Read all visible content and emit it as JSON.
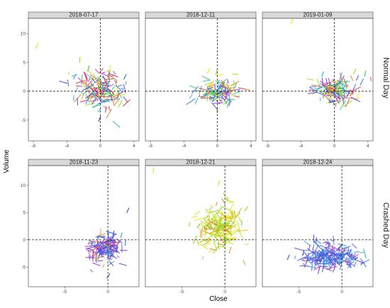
{
  "figure": {
    "xlabel": "Close",
    "ylabel": "Volume",
    "row_labels": [
      "Normal Day",
      "Crashed Day"
    ]
  },
  "chart_data": [
    {
      "type": "scatter",
      "title": "2018-07-17",
      "row": "Normal Day",
      "xlim": [
        -8.6,
        4.6
      ],
      "ylim": [
        -8.6,
        12.6
      ],
      "xticks": [
        -8,
        -4,
        0,
        4
      ],
      "yticks": [
        -5,
        0,
        5,
        10
      ],
      "reference_lines": {
        "x": 0,
        "y": 0
      },
      "cloud": {
        "center": [
          0,
          0
        ],
        "x_spread": 1.4,
        "y_spread": 1.6,
        "n": 180
      },
      "outliers": [
        [
          -7.7,
          7.5
        ],
        [
          -2.5,
          5.0
        ],
        [
          -1.5,
          3.5
        ],
        [
          -3.2,
          2.1
        ],
        [
          2.8,
          2.1
        ],
        [
          -0.2,
          -5.2
        ],
        [
          0.6,
          -3.6
        ],
        [
          2.0,
          -1.2
        ]
      ],
      "color_scale": [
        "#e8e51a",
        "#9ae01c",
        "#35d06b",
        "#33b7c6",
        "#3a7ae6",
        "#6f3bd8",
        "#c93ad0",
        "#e83a50",
        "#e8822a"
      ]
    },
    {
      "type": "scatter",
      "title": "2018-12-11",
      "row": "Normal Day",
      "xlim": [
        -8.6,
        4.6
      ],
      "ylim": [
        -8.6,
        12.6
      ],
      "xticks": [
        -8,
        -4,
        0,
        4
      ],
      "yticks": [
        -5,
        0,
        5,
        10
      ],
      "reference_lines": {
        "x": 0,
        "y": 0
      },
      "cloud": {
        "center": [
          0,
          -0.1
        ],
        "x_spread": 1.1,
        "y_spread": 1.0,
        "n": 140
      },
      "outliers": [
        [
          -1.2,
          3.1
        ],
        [
          -0.2,
          2.8
        ],
        [
          2.0,
          0.5
        ],
        [
          1.0,
          -2.1
        ]
      ],
      "color_scale": [
        "#e8e51a",
        "#9ae01c",
        "#35d06b",
        "#33b7c6",
        "#3a7ae6",
        "#6f3bd8",
        "#c93ad0",
        "#e83a50",
        "#e8822a"
      ]
    },
    {
      "type": "scatter",
      "title": "2019-01-09",
      "row": "Normal Day",
      "xlim": [
        -8.6,
        4.6
      ],
      "ylim": [
        -8.6,
        12.6
      ],
      "xticks": [
        -8,
        -4,
        0,
        4
      ],
      "yticks": [
        -5,
        0,
        5,
        10
      ],
      "reference_lines": {
        "x": 0,
        "y": 0
      },
      "cloud": {
        "center": [
          0,
          0
        ],
        "x_spread": 1.2,
        "y_spread": 1.0,
        "n": 160
      },
      "outliers": [
        [
          -5.2,
          11.7
        ],
        [
          2.3,
          3.0
        ],
        [
          3.6,
          2.6
        ],
        [
          -1.5,
          2.5
        ],
        [
          2.6,
          1.9
        ],
        [
          1.5,
          -0.9
        ]
      ],
      "color_scale": [
        "#e8e51a",
        "#9ae01c",
        "#35d06b",
        "#33b7c6",
        "#3a7ae6",
        "#6f3bd8",
        "#c93ad0",
        "#e83a50",
        "#e8822a"
      ]
    },
    {
      "type": "scatter",
      "title": "2018-11-23",
      "row": "Crashed Day",
      "xlim": [
        -9.2,
        3.6
      ],
      "ylim": [
        -8.6,
        13.6
      ],
      "xticks": [
        -5,
        0
      ],
      "yticks": [
        -5,
        0,
        5,
        10
      ],
      "reference_lines": {
        "x": 0,
        "y": 0
      },
      "cloud": {
        "center": [
          -0.2,
          -1.6
        ],
        "x_spread": 0.9,
        "y_spread": 1.2,
        "n": 170
      },
      "outliers": [
        [
          2.2,
          5.0
        ],
        [
          2.0,
          -1.0
        ],
        [
          1.5,
          0.4
        ],
        [
          -0.1,
          -7.0
        ],
        [
          -1.3,
          -1.2
        ]
      ],
      "color_scale": [
        "#3f5bdc",
        "#3a7ae6",
        "#33a9d6",
        "#6f3bd8",
        "#9a3bd8",
        "#c93ad0",
        "#e89a2a"
      ]
    },
    {
      "type": "scatter",
      "title": "2018-12-21",
      "row": "Crashed Day",
      "xlim": [
        -9.2,
        3.6
      ],
      "ylim": [
        -8.6,
        13.6
      ],
      "xticks": [
        -5,
        0
      ],
      "yticks": [
        -5,
        0,
        5,
        10
      ],
      "reference_lines": {
        "x": 0,
        "y": 0
      },
      "cloud": {
        "center": [
          -0.6,
          2.2
        ],
        "x_spread": 1.2,
        "y_spread": 2.0,
        "n": 220
      },
      "outliers": [
        [
          -8.3,
          12.3
        ],
        [
          -0.8,
          10.0
        ],
        [
          1.6,
          5.0
        ],
        [
          2.3,
          5.3
        ],
        [
          -3.2,
          2.2
        ],
        [
          -2.0,
          -0.5
        ]
      ],
      "color_scale": [
        "#f0e21c",
        "#d8e61a",
        "#b6e01c",
        "#9ae01c",
        "#7cd830",
        "#e8c02a",
        "#e8822a"
      ]
    },
    {
      "type": "scatter",
      "title": "2018-12-24",
      "row": "Crashed Day",
      "xlim": [
        -9.2,
        3.6
      ],
      "ylim": [
        -8.6,
        13.6
      ],
      "xticks": [
        -5,
        0
      ],
      "yticks": [
        -5,
        0,
        5,
        10
      ],
      "reference_lines": {
        "x": 0,
        "y": 0
      },
      "cloud": {
        "center": [
          -1.4,
          -3.1
        ],
        "x_spread": 1.6,
        "y_spread": 0.9,
        "n": 260
      },
      "outliers": [
        [
          -6.3,
          -3.6
        ],
        [
          -3.0,
          -0.5
        ],
        [
          -1.5,
          -1.5
        ],
        [
          1.4,
          -4.9
        ],
        [
          0.9,
          -2.6
        ]
      ],
      "color_scale": [
        "#3f5bdc",
        "#3a7ae6",
        "#3a93e0",
        "#33a9d6",
        "#4d6fe0",
        "#6f3bd8",
        "#c93ad0"
      ]
    }
  ]
}
